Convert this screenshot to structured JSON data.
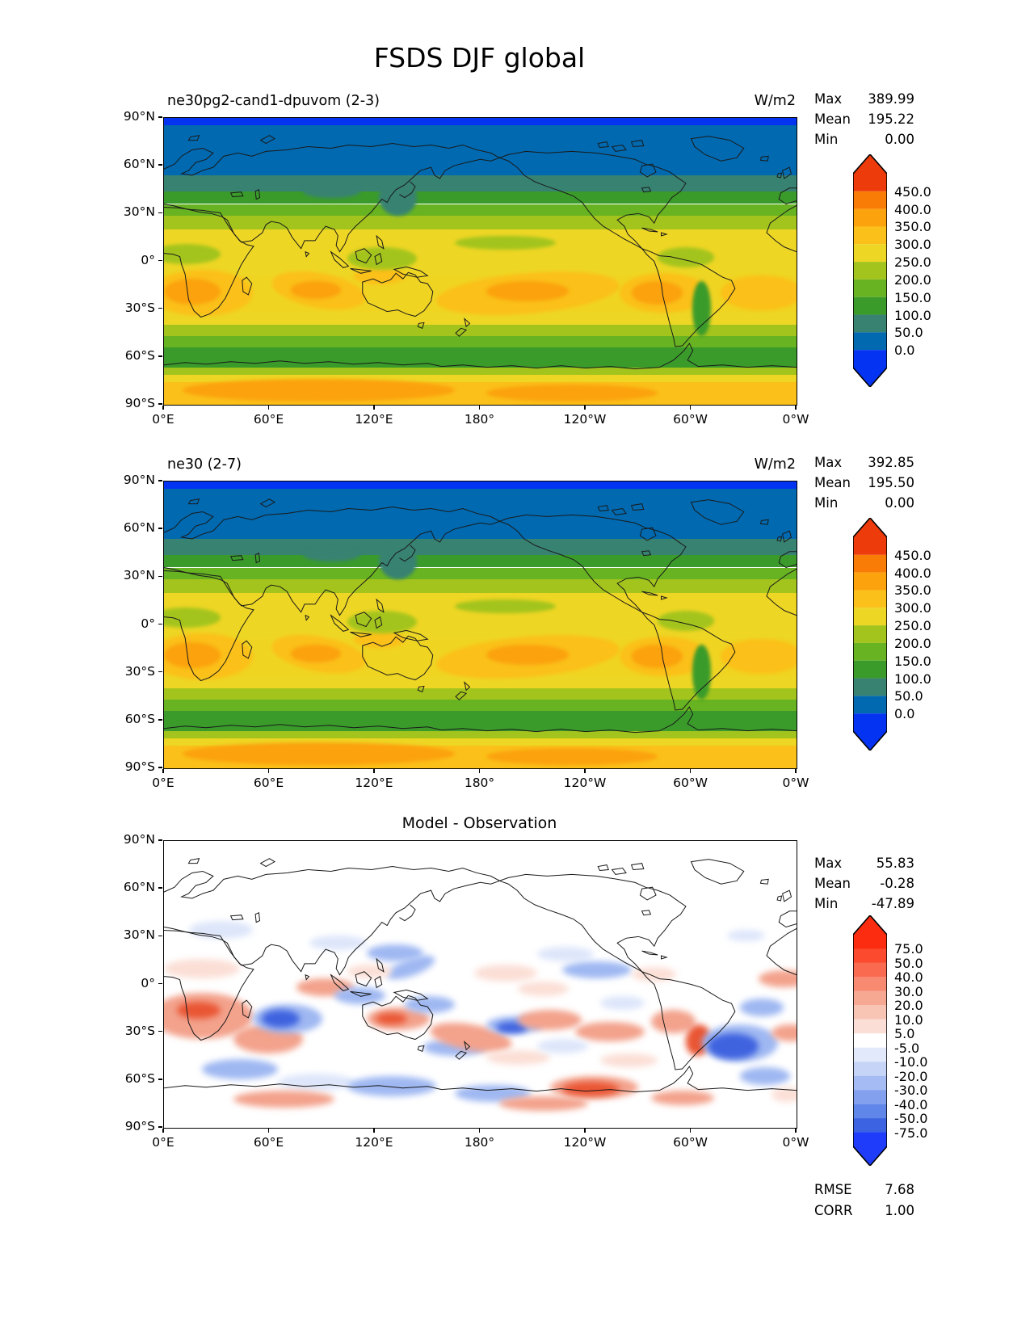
{
  "title": "FSDS DJF global",
  "labels": {
    "max": "Max",
    "mean": "Mean",
    "min": "Min",
    "rmse": "RMSE",
    "corr": "CORR"
  },
  "panels": [
    {
      "title": "ne30pg2-cand1-dpuvom (2-3)",
      "units": "W/m2",
      "stats": {
        "max": "389.99",
        "mean": "195.22",
        "min": "0.00"
      }
    },
    {
      "title": "ne30 (2-7)",
      "units": "W/m2",
      "stats": {
        "max": "392.85",
        "mean": "195.50",
        "min": "0.00"
      }
    },
    {
      "title": "Model - Observation",
      "stats": {
        "max": "55.83",
        "mean": "-0.28",
        "min": "-47.89"
      },
      "metrics": {
        "rmse": "7.68",
        "corr": "1.00"
      }
    }
  ],
  "axes": {
    "x_tick_labels": [
      "0°E",
      "60°E",
      "120°E",
      "180°",
      "120°W",
      "60°W",
      "0°W"
    ],
    "y_tick_labels": [
      "90°N",
      "60°N",
      "30°N",
      "0°",
      "30°S",
      "60°S",
      "90°S"
    ]
  },
  "chart_data": [
    {
      "type": "heatmap",
      "variant": "filled-contour-global-map",
      "title": "ne30pg2-cand1-dpuvom (2-3)",
      "units": "W/m2",
      "stats": {
        "max": 389.99,
        "mean": 195.22,
        "min": 0.0
      },
      "colorbar": {
        "tick_labels": [
          "450.0",
          "400.0",
          "350.0",
          "300.0",
          "250.0",
          "200.0",
          "150.0",
          "100.0",
          "50.0",
          "0.0"
        ],
        "levels": [
          0,
          50,
          100,
          150,
          200,
          250,
          300,
          350,
          400,
          450
        ],
        "extend": "both",
        "colors_top_to_bottom": [
          "#ee3b0c",
          "#f97c06",
          "#fba20d",
          "#fbc019",
          "#eed624",
          "#a3c41d",
          "#67b321",
          "#3a9b2b",
          "#388272",
          "#0069b0",
          "#0533f2"
        ]
      },
      "latitudinal_profile_estimate_w_m2": {
        "lat": [
          90,
          70,
          55,
          45,
          35,
          25,
          15,
          0,
          -20,
          -30,
          -45,
          -60,
          -75,
          -90
        ],
        "fsds": [
          0,
          25,
          60,
          110,
          160,
          220,
          260,
          280,
          310,
          320,
          230,
          180,
          310,
          330
        ]
      },
      "x_range_deg_east": [
        0,
        360
      ],
      "y_range_lat": [
        90,
        -90
      ],
      "bands": [
        [
          0,
          2.5,
          "#0533f2"
        ],
        [
          2.5,
          20,
          "#0069b0"
        ],
        [
          20,
          25.5,
          "#388272"
        ],
        [
          25.5,
          30,
          "#3a9b2b"
        ],
        [
          30,
          34,
          "#67b321"
        ],
        [
          34,
          39,
          "#a3c41d"
        ],
        [
          39,
          55,
          "#eed624"
        ],
        [
          55,
          68,
          "#f0d422"
        ],
        [
          68,
          72,
          "#eed624"
        ],
        [
          72,
          76,
          "#a3c41d"
        ],
        [
          76,
          80,
          "#67b321"
        ],
        [
          80,
          87,
          "#3a9b2b"
        ],
        [
          87,
          89.5,
          "#a3c41d"
        ],
        [
          89.5,
          92,
          "#eed624"
        ],
        [
          92,
          100,
          "#fbc019"
        ]
      ],
      "blobs": [
        [
          -2,
          53,
          16,
          16,
          0,
          "#fbc019"
        ],
        [
          0,
          56,
          9,
          9,
          0,
          "#fba20d"
        ],
        [
          17,
          54,
          15,
          12,
          10,
          "#fbc019"
        ],
        [
          20,
          57,
          8,
          6,
          0,
          "#fba20d"
        ],
        [
          30,
          52,
          8,
          6,
          0,
          "#fbc019"
        ],
        [
          43,
          54,
          29,
          14,
          -5,
          "#fbc019"
        ],
        [
          51,
          57,
          13,
          7,
          0,
          "#fba20d"
        ],
        [
          72,
          54,
          14,
          14,
          0,
          "#fbc019"
        ],
        [
          74,
          57,
          8,
          8,
          0,
          "#fba20d"
        ],
        [
          88,
          55,
          13,
          12,
          0,
          "#fbc019"
        ],
        [
          -2,
          44,
          11,
          7,
          0,
          "#a3c41d"
        ],
        [
          29,
          45,
          11,
          8,
          0,
          "#a3c41d"
        ],
        [
          46,
          41,
          16,
          5,
          0,
          "#a3c41d"
        ],
        [
          78,
          45,
          9,
          7,
          0,
          "#a3c41d"
        ],
        [
          83.5,
          57,
          3,
          19,
          0,
          "#3a9b2b"
        ],
        [
          22,
          23,
          9,
          5,
          0,
          "#388272"
        ],
        [
          34,
          21,
          6,
          13,
          12,
          "#388272"
        ],
        [
          3,
          91,
          43,
          8,
          0,
          "#fba20d"
        ],
        [
          51,
          93,
          27,
          6,
          0,
          "#fba20d"
        ]
      ]
    },
    {
      "type": "heatmap",
      "variant": "filled-contour-global-map",
      "title": "ne30 (2-7)",
      "units": "W/m2",
      "stats": {
        "max": 392.85,
        "mean": 195.5,
        "min": 0.0
      },
      "colorbar": {
        "tick_labels": [
          "450.0",
          "400.0",
          "350.0",
          "300.0",
          "250.0",
          "200.0",
          "150.0",
          "100.0",
          "50.0",
          "0.0"
        ],
        "levels": [
          0,
          50,
          100,
          150,
          200,
          250,
          300,
          350,
          400,
          450
        ],
        "extend": "both",
        "colors_top_to_bottom": [
          "#ee3b0c",
          "#f97c06",
          "#fba20d",
          "#fbc019",
          "#eed624",
          "#a3c41d",
          "#67b321",
          "#3a9b2b",
          "#388272",
          "#0069b0",
          "#0533f2"
        ]
      },
      "x_range_deg_east": [
        0,
        360
      ],
      "y_range_lat": [
        90,
        -90
      ],
      "bands": "same_as_panel_0",
      "blobs": "same_as_panel_0"
    },
    {
      "type": "heatmap",
      "variant": "difference-map",
      "title": "Model - Observation",
      "stats": {
        "max": 55.83,
        "mean": -0.28,
        "min": -47.89
      },
      "metrics": {
        "rmse": 7.68,
        "corr": 1.0
      },
      "colorbar": {
        "tick_labels": [
          "75.0",
          "50.0",
          "40.0",
          "30.0",
          "20.0",
          "10.0",
          "5.0",
          "-5.0",
          "-10.0",
          "-20.0",
          "-30.0",
          "-40.0",
          "-50.0",
          "-75.0"
        ],
        "levels": [
          -75,
          -50,
          -40,
          -30,
          -20,
          -10,
          -5,
          5,
          10,
          20,
          30,
          40,
          50,
          75
        ],
        "extend": "both",
        "colors_top_to_bottom": [
          "#fb2c10",
          "#fb4a2e",
          "#f96a50",
          "#f88a72",
          "#f7a893",
          "#f8c4b4",
          "#fbdfd6",
          "#ffffff",
          "#e2e9fb",
          "#c6d4f7",
          "#a4bbf3",
          "#82a0ee",
          "#6186e9",
          "#3c63e2",
          "#1f3cfb"
        ]
      },
      "x_range_deg_east": [
        0,
        360
      ],
      "y_range_lat": [
        90,
        -90
      ],
      "background": "#ffffff",
      "anomaly_blobs": [
        [
          4,
          28,
          10,
          6,
          0,
          "b1"
        ],
        [
          0,
          41,
          12,
          7,
          0,
          "r1"
        ],
        [
          -2,
          53,
          16,
          16,
          0,
          "r2"
        ],
        [
          2,
          56,
          7,
          6,
          0,
          "r3"
        ],
        [
          11,
          64,
          11,
          10,
          0,
          "r2"
        ],
        [
          14,
          57,
          11,
          10,
          0,
          "b2"
        ],
        [
          15.5,
          59,
          6,
          6,
          0,
          "b3"
        ],
        [
          21,
          48,
          9,
          6,
          0,
          "r2"
        ],
        [
          27,
          51,
          8,
          6,
          0,
          "b2"
        ],
        [
          23,
          33,
          9,
          5,
          0,
          "b1"
        ],
        [
          32,
          36,
          9,
          6,
          0,
          "b2"
        ],
        [
          35,
          41,
          8,
          6,
          -20,
          "b2"
        ],
        [
          29,
          43,
          7,
          5,
          0,
          "r1"
        ],
        [
          32,
          58,
          10,
          8,
          0,
          "r2"
        ],
        [
          33.5,
          60,
          5,
          4,
          0,
          "r3"
        ],
        [
          38,
          54,
          8,
          6,
          0,
          "b2"
        ],
        [
          41,
          69,
          10,
          6,
          0,
          "b2"
        ],
        [
          42,
          64,
          13,
          9,
          10,
          "r2"
        ],
        [
          51,
          61,
          9,
          6,
          0,
          "b2"
        ],
        [
          52.5,
          63,
          5,
          4,
          0,
          "b3"
        ],
        [
          49,
          43,
          10,
          6,
          0,
          "r1"
        ],
        [
          56,
          49,
          8,
          5,
          0,
          "r1"
        ],
        [
          59,
          37,
          9,
          5,
          0,
          "b1"
        ],
        [
          63,
          42,
          11,
          6,
          0,
          "b2"
        ],
        [
          56,
          59,
          10,
          7,
          0,
          "r2"
        ],
        [
          65,
          63,
          11,
          7,
          0,
          "r2"
        ],
        [
          69,
          54,
          7,
          5,
          0,
          "b1"
        ],
        [
          74,
          44,
          7,
          5,
          0,
          "r1"
        ],
        [
          77,
          59,
          7,
          8,
          0,
          "r2"
        ],
        [
          82.5,
          64,
          4,
          11,
          10,
          "r3"
        ],
        [
          85,
          64,
          12,
          13,
          0,
          "b2"
        ],
        [
          86,
          67,
          8,
          9,
          0,
          "b3"
        ],
        [
          91,
          55,
          7,
          6,
          0,
          "b2"
        ],
        [
          94,
          45,
          8,
          6,
          0,
          "r2"
        ],
        [
          96,
          64,
          6,
          6,
          0,
          "r2"
        ],
        [
          89,
          31,
          6,
          4,
          0,
          "b1"
        ],
        [
          6,
          76,
          12,
          7,
          0,
          "b2"
        ],
        [
          18,
          81,
          12,
          6,
          0,
          "b1"
        ],
        [
          29,
          82,
          14,
          7,
          0,
          "b2"
        ],
        [
          46,
          85,
          12,
          6,
          0,
          "b2"
        ],
        [
          11,
          87,
          16,
          6,
          0,
          "r2"
        ],
        [
          53,
          89,
          14,
          5,
          0,
          "r2"
        ],
        [
          61,
          82,
          14,
          8,
          0,
          "r2"
        ],
        [
          63,
          84,
          9,
          5,
          0,
          "r3"
        ],
        [
          77,
          87,
          10,
          5,
          0,
          "r2"
        ],
        [
          91,
          79,
          8,
          6,
          0,
          "b2"
        ],
        [
          96,
          86,
          5,
          5,
          0,
          "r1"
        ],
        [
          51,
          73,
          10,
          5,
          0,
          "r1"
        ],
        [
          69,
          74,
          9,
          5,
          0,
          "r1"
        ],
        [
          59,
          69,
          8,
          5,
          0,
          "b1"
        ]
      ],
      "anomaly_palette": {
        "r1": "#fbdfd6",
        "r2": "#f3a28c",
        "r3": "#e95634",
        "b1": "#dde6fa",
        "b2": "#9fb8f2",
        "b3": "#3f63df"
      }
    }
  ]
}
